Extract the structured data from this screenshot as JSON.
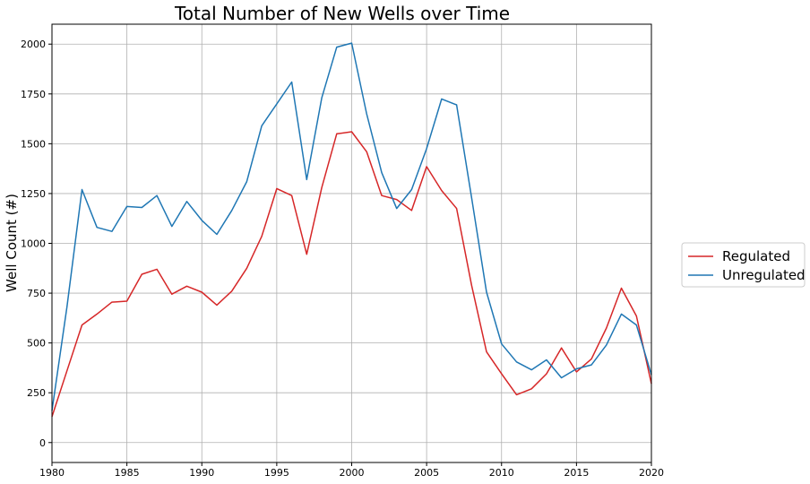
{
  "chart_data": {
    "type": "line",
    "title": "Total Number of New Wells over Time",
    "xlabel": "",
    "ylabel": "Well Count (#)",
    "xlim": [
      1980,
      2020
    ],
    "ylim": [
      -100,
      2100
    ],
    "x_ticks": [
      1980,
      1985,
      1990,
      1995,
      2000,
      2005,
      2010,
      2015,
      2020
    ],
    "y_ticks": [
      0,
      250,
      500,
      750,
      1000,
      1250,
      1500,
      1750,
      2000
    ],
    "grid": true,
    "legend_position": "right",
    "x": [
      1980,
      1981,
      1982,
      1983,
      1984,
      1985,
      1986,
      1987,
      1988,
      1989,
      1990,
      1991,
      1992,
      1993,
      1994,
      1995,
      1996,
      1997,
      1998,
      1999,
      2000,
      2001,
      2002,
      2003,
      2004,
      2005,
      2006,
      2007,
      2008,
      2009,
      2010,
      2011,
      2012,
      2013,
      2014,
      2015,
      2016,
      2017,
      2018,
      2019,
      2020
    ],
    "series": [
      {
        "name": "Regulated",
        "color": "#d62728",
        "values": [
          130,
          360,
          590,
          645,
          705,
          710,
          845,
          870,
          745,
          785,
          755,
          690,
          760,
          875,
          1035,
          1275,
          1240,
          945,
          1280,
          1550,
          1560,
          1460,
          1240,
          1220,
          1165,
          1385,
          1265,
          1175,
          790,
          455,
          345,
          240,
          270,
          345,
          475,
          355,
          420,
          575,
          775,
          635,
          295
        ]
      },
      {
        "name": "Unregulated",
        "color": "#1f77b4",
        "values": [
          160,
          680,
          1270,
          1080,
          1060,
          1185,
          1180,
          1240,
          1085,
          1210,
          1115,
          1045,
          1165,
          1310,
          1590,
          1700,
          1810,
          1320,
          1730,
          1985,
          2005,
          1650,
          1355,
          1175,
          1270,
          1475,
          1725,
          1695,
          1230,
          755,
          495,
          405,
          365,
          415,
          325,
          370,
          390,
          490,
          645,
          590,
          340
        ]
      }
    ]
  }
}
